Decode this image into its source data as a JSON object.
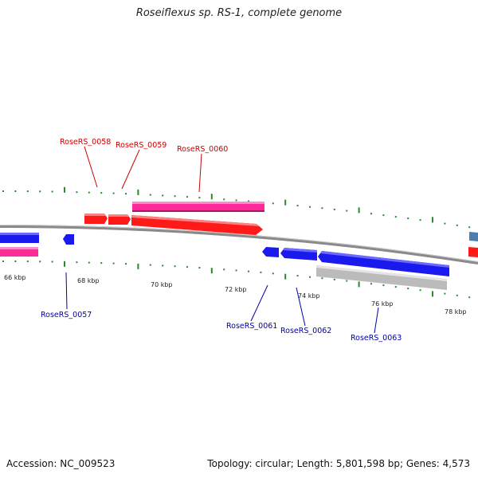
{
  "title": "Roseiflexus sp. RS-1, complete genome",
  "accession": "Accession: NC_009523",
  "summary": "Topology: circular; Length: 5,801,598 bp; Genes: 4,573",
  "colors": {
    "forward": "#ff1a1a",
    "reverse": "#1a1aee",
    "forward_secondary": "#ff2a9a",
    "reverse_secondary": "#bbbbbb",
    "partial": "#4a7fb0",
    "ticks": "#2a8a2a",
    "forward_label": "#cc0000",
    "reverse_label": "#0000aa",
    "backbone": "#8a8a8a"
  },
  "kbp_labels": [
    "66 kbp",
    "68 kbp",
    "70 kbp",
    "72 kbp",
    "74 kbp",
    "76 kbp",
    "78 kbp"
  ],
  "forward_genes": [
    "RoseRS_0058",
    "RoseRS_0059",
    "RoseRS_0060"
  ],
  "reverse_genes": [
    "RoseRS_0057",
    "RoseRS_0061",
    "RoseRS_0062",
    "RoseRS_0063"
  ]
}
